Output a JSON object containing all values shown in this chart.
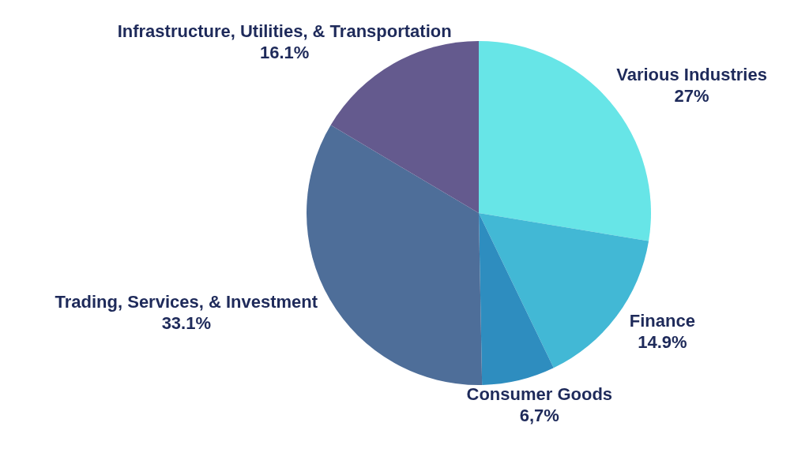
{
  "chart_data": {
    "type": "pie",
    "categories": [
      "Various Industries",
      "Finance",
      "Consumer Goods",
      "Trading, Services, & Investment",
      "Infrastructure, Utilities, & Transportation"
    ],
    "values": [
      27,
      14.9,
      6.7,
      33.1,
      16.1
    ],
    "value_labels": [
      "27%",
      "14.9%",
      "6,7%",
      "33.1%",
      "16.1%"
    ],
    "colors": [
      "#67e5e7",
      "#42b8d5",
      "#2e8dbf",
      "#4e6e99",
      "#645a8e"
    ]
  }
}
